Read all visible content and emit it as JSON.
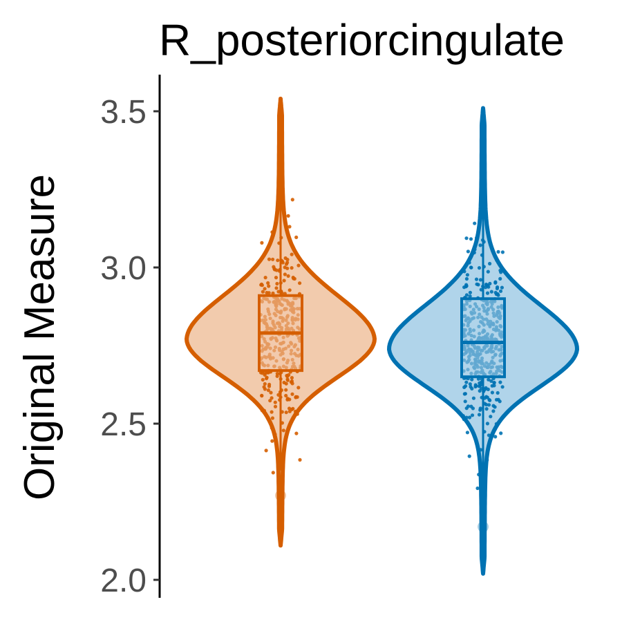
{
  "chart_data": {
    "type": "violin",
    "title": "R_posteriorcingulate",
    "xlabel": "",
    "ylabel": "Original Measure",
    "ylim": [
      2.0,
      3.6
    ],
    "y_ticks": [
      "2.0",
      "2.5",
      "3.0",
      "3.5"
    ],
    "grid": false,
    "legend": "none",
    "series": [
      {
        "color": "#D55E00",
        "fill": "#F2CBAD",
        "min": 2.11,
        "max": 3.54,
        "mode": 2.77,
        "q1": 2.67,
        "median": 2.79,
        "q3": 2.91,
        "whisker_low": 2.35,
        "whisker_high": 3.27,
        "outliers": [
          2.27
        ],
        "points": 350
      },
      {
        "color": "#0072B2",
        "fill": "#B0D4EA",
        "min": 2.02,
        "max": 3.51,
        "mode": 2.74,
        "q1": 2.65,
        "median": 2.76,
        "q3": 2.9,
        "whisker_low": 2.29,
        "whisker_high": 3.27,
        "outliers": [
          2.17
        ],
        "points": 420
      }
    ]
  }
}
